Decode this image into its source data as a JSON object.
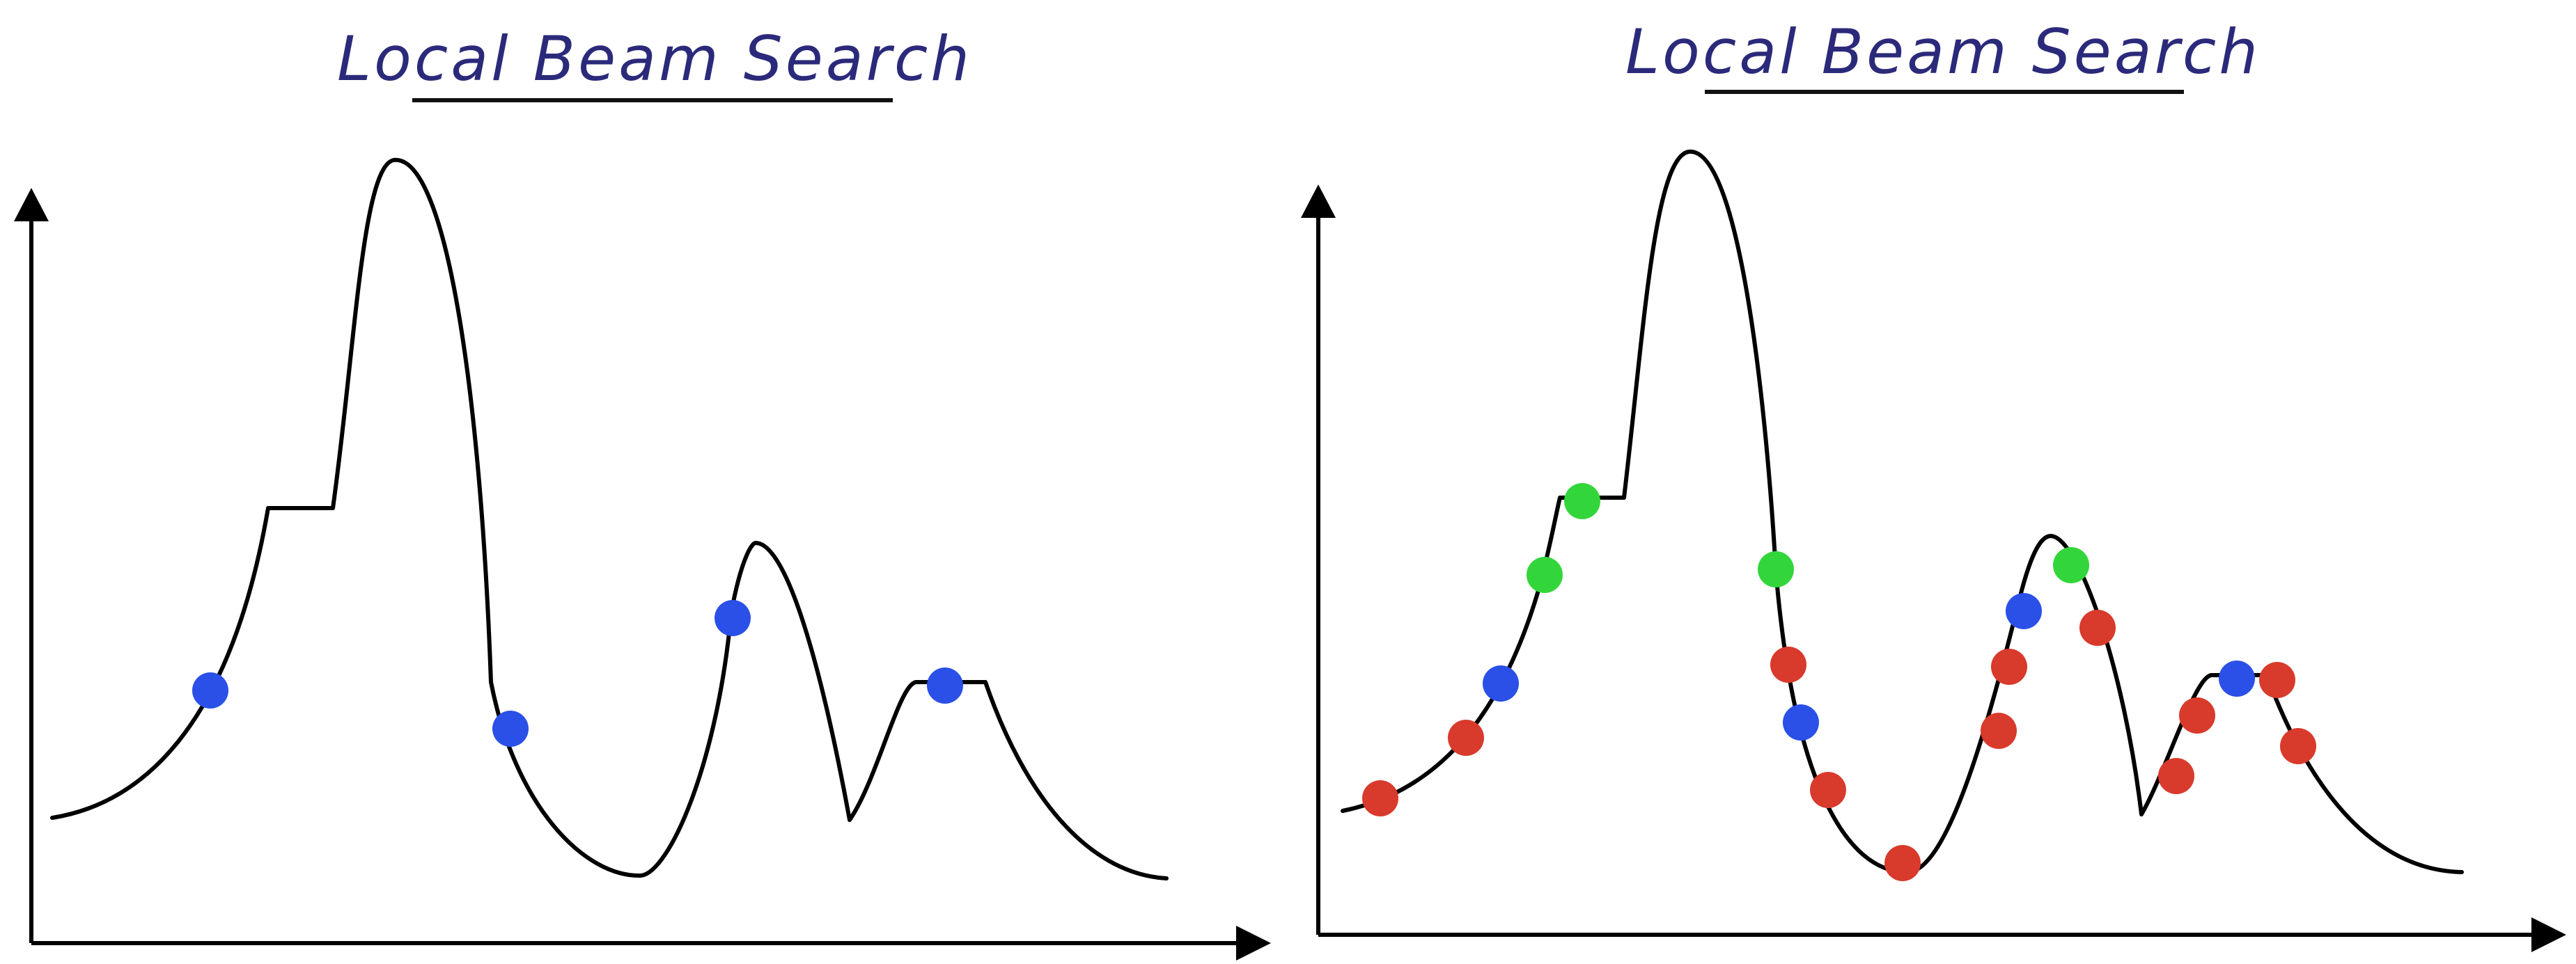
{
  "panels": [
    {
      "title": "Local Beam Search",
      "points": [
        {
          "color": "blue"
        },
        {
          "color": "blue"
        },
        {
          "color": "blue"
        },
        {
          "color": "blue"
        }
      ]
    },
    {
      "title": "Local Beam Search",
      "points": [
        {
          "color": "red"
        },
        {
          "color": "red"
        },
        {
          "color": "blue"
        },
        {
          "color": "green"
        },
        {
          "color": "green"
        },
        {
          "color": "green"
        },
        {
          "color": "red"
        },
        {
          "color": "blue"
        },
        {
          "color": "red"
        },
        {
          "color": "red"
        },
        {
          "color": "red"
        },
        {
          "color": "red"
        },
        {
          "color": "blue"
        },
        {
          "color": "green"
        },
        {
          "color": "red"
        },
        {
          "color": "red"
        },
        {
          "color": "red"
        },
        {
          "color": "blue"
        },
        {
          "color": "red"
        },
        {
          "color": "red"
        }
      ]
    }
  ],
  "colors": {
    "blue": "#2a50e8",
    "red": "#d83a2c",
    "green": "#33d63a",
    "title": "#2b2a7a"
  }
}
